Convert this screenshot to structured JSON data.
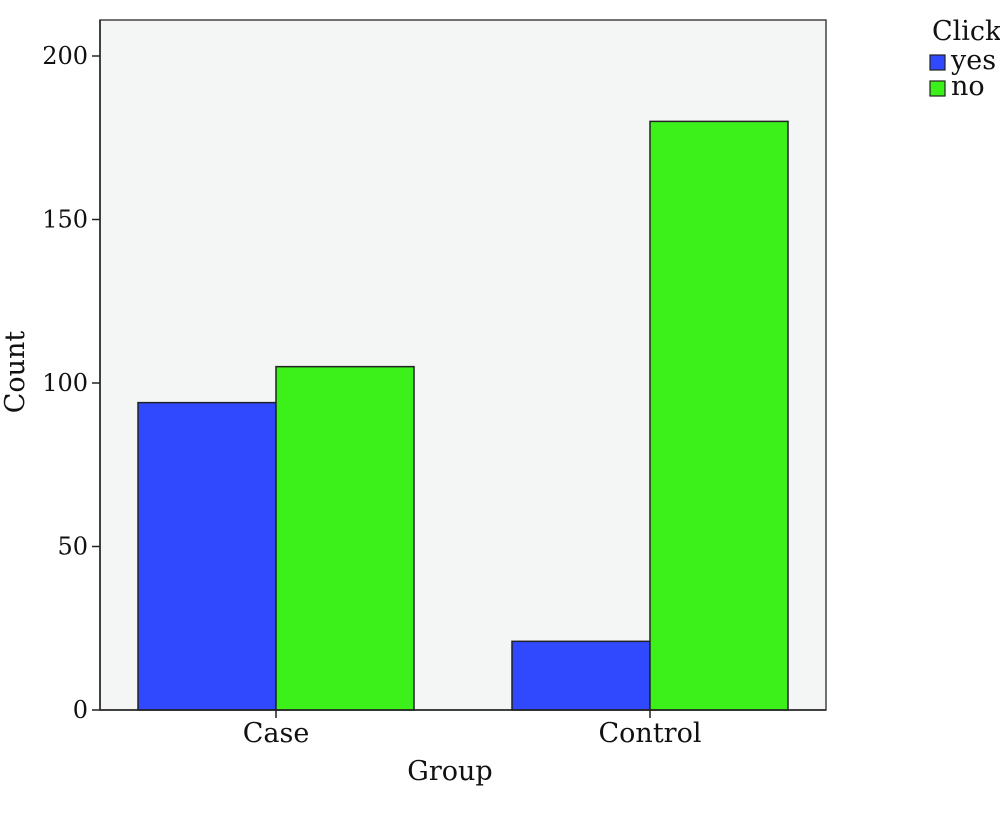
{
  "chart_data": {
    "type": "bar",
    "title": "",
    "xlabel": "Group",
    "ylabel": "Count",
    "categories": [
      "Case",
      "Control"
    ],
    "series": [
      {
        "name": "yes",
        "values": [
          94,
          21
        ],
        "color": "#3049FF"
      },
      {
        "name": "no",
        "values": [
          105,
          180
        ],
        "color": "#3CF01A"
      }
    ],
    "ylim": [
      0,
      200
    ],
    "yticks": [
      0,
      50,
      100,
      150,
      200
    ],
    "grid": false,
    "legend": {
      "title": "Click",
      "placement": "top-right-outside"
    },
    "colors": {
      "plot_background": "#F4F5F5",
      "frame": "#444444",
      "bar_outline": "#222222"
    }
  }
}
